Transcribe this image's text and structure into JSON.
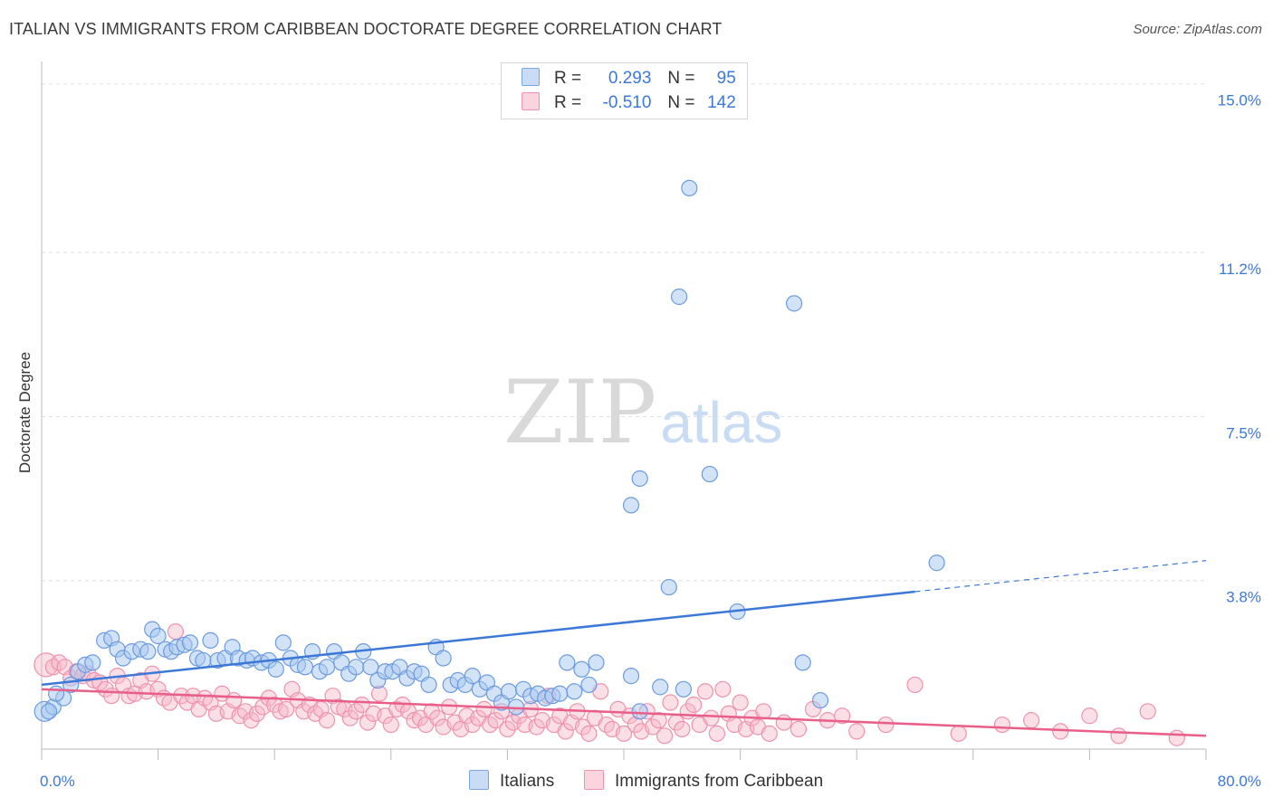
{
  "header": {
    "title": "ITALIAN VS IMMIGRANTS FROM CARIBBEAN DOCTORATE DEGREE CORRELATION CHART",
    "source": "Source: ZipAtlas.com"
  },
  "legend": {
    "r_label": "R =",
    "n_label": "N =",
    "rows": [
      {
        "r": "0.293",
        "n": "95",
        "color": "#a8c8f0"
      },
      {
        "r": "-0.510",
        "n": "142",
        "color": "#f7b7c8"
      }
    ]
  },
  "watermark": {
    "zip": "ZIP",
    "atlas": "atlas"
  },
  "colors": {
    "blue": "#3c78d8",
    "blue_fill": "#a8c8f0",
    "pink": "#e8608a",
    "pink_fill": "#f7b7c8",
    "grid": "#dddddd"
  },
  "chart_data": {
    "type": "scatter",
    "title": "ITALIAN VS IMMIGRANTS FROM CARIBBEAN DOCTORATE DEGREE CORRELATION CHART",
    "xlabel": "",
    "ylabel": "Doctorate Degree",
    "xlim": [
      0,
      80
    ],
    "ylim": [
      0,
      15.3
    ],
    "y_ticks": [
      3.8,
      7.5,
      11.2,
      15.0
    ],
    "y_tick_labels": [
      "3.8%",
      "7.5%",
      "11.2%",
      "15.0%"
    ],
    "x_tick_labels": [
      "0.0%",
      "80.0%"
    ],
    "grid": true,
    "legend_placement": "bottom",
    "series": [
      {
        "name": "Italians",
        "color": "#a8c8f0",
        "trend": {
          "x0": 0,
          "y0": 1.45,
          "x1": 60,
          "y1": 3.55,
          "dash_to_x": 80,
          "dash_to_y": 4.25
        },
        "points": [
          [
            0.2,
            0.85
          ],
          [
            0.8,
            0.95
          ],
          [
            1.5,
            1.15
          ],
          [
            2,
            1.45
          ],
          [
            2.5,
            1.75
          ],
          [
            3,
            1.9
          ],
          [
            3.5,
            1.95
          ],
          [
            4.3,
            2.45
          ],
          [
            4.8,
            2.5
          ],
          [
            5.2,
            2.25
          ],
          [
            5.6,
            2.05
          ],
          [
            6.2,
            2.2
          ],
          [
            6.8,
            2.25
          ],
          [
            7.3,
            2.2
          ],
          [
            7.6,
            2.7
          ],
          [
            8,
            2.55
          ],
          [
            8.5,
            2.25
          ],
          [
            8.9,
            2.2
          ],
          [
            9.3,
            2.3
          ],
          [
            9.8,
            2.35
          ],
          [
            10.2,
            2.4
          ],
          [
            10.7,
            2.05
          ],
          [
            11.1,
            2.0
          ],
          [
            11.6,
            2.45
          ],
          [
            12.1,
            2.0
          ],
          [
            12.6,
            2.05
          ],
          [
            13.1,
            2.3
          ],
          [
            13.5,
            2.05
          ],
          [
            14.1,
            2.0
          ],
          [
            14.5,
            2.05
          ],
          [
            15.1,
            1.95
          ],
          [
            15.6,
            2.0
          ],
          [
            16.1,
            1.8
          ],
          [
            16.6,
            2.4
          ],
          [
            17.1,
            2.05
          ],
          [
            17.6,
            1.9
          ],
          [
            18.1,
            1.85
          ],
          [
            18.6,
            2.2
          ],
          [
            19.1,
            1.75
          ],
          [
            19.6,
            1.85
          ],
          [
            20.1,
            2.2
          ],
          [
            20.6,
            1.95
          ],
          [
            21.1,
            1.7
          ],
          [
            21.6,
            1.85
          ],
          [
            22.1,
            2.2
          ],
          [
            22.6,
            1.85
          ],
          [
            23.1,
            1.55
          ],
          [
            23.6,
            1.75
          ],
          [
            24.1,
            1.75
          ],
          [
            24.6,
            1.85
          ],
          [
            25.1,
            1.6
          ],
          [
            25.6,
            1.75
          ],
          [
            26.1,
            1.7
          ],
          [
            26.6,
            1.45
          ],
          [
            27.1,
            2.3
          ],
          [
            27.6,
            2.05
          ],
          [
            28.1,
            1.45
          ],
          [
            28.6,
            1.55
          ],
          [
            29.1,
            1.45
          ],
          [
            29.6,
            1.65
          ],
          [
            30.1,
            1.35
          ],
          [
            30.6,
            1.5
          ],
          [
            31.1,
            1.25
          ],
          [
            31.6,
            1.05
          ],
          [
            32.1,
            1.3
          ],
          [
            32.6,
            0.95
          ],
          [
            33.1,
            1.35
          ],
          [
            33.6,
            1.2
          ],
          [
            34.1,
            1.25
          ],
          [
            34.6,
            1.15
          ],
          [
            35.1,
            1.2
          ],
          [
            35.6,
            1.25
          ],
          [
            36.1,
            1.95
          ],
          [
            36.6,
            1.3
          ],
          [
            37.1,
            1.8
          ],
          [
            37.6,
            1.45
          ],
          [
            38.1,
            1.95
          ],
          [
            40.5,
            1.65
          ],
          [
            41.1,
            0.85
          ],
          [
            42.5,
            1.4
          ],
          [
            44.1,
            1.35
          ],
          [
            41.1,
            6.1
          ],
          [
            40.5,
            5.5
          ],
          [
            43.1,
            3.65
          ],
          [
            43.8,
            10.2
          ],
          [
            44.5,
            12.65
          ],
          [
            45.9,
            6.2
          ],
          [
            47.8,
            3.1
          ],
          [
            51.7,
            10.05
          ],
          [
            52.3,
            1.95
          ],
          [
            53.5,
            1.1
          ],
          [
            61.5,
            4.2
          ],
          [
            0.5,
            0.85
          ],
          [
            1.0,
            1.25
          ]
        ]
      },
      {
        "name": "Immigrants from Caribbean",
        "color": "#f7b7c8",
        "trend": {
          "x0": 0,
          "y0": 1.35,
          "x1": 80,
          "y1": 0.3
        },
        "points": [
          [
            0.3,
            1.9
          ],
          [
            0.8,
            1.85
          ],
          [
            1.2,
            1.95
          ],
          [
            1.6,
            1.85
          ],
          [
            2,
            1.6
          ],
          [
            2.4,
            1.75
          ],
          [
            2.8,
            1.65
          ],
          [
            3.2,
            1.7
          ],
          [
            3.6,
            1.55
          ],
          [
            4,
            1.5
          ],
          [
            4.4,
            1.35
          ],
          [
            4.8,
            1.2
          ],
          [
            5.2,
            1.65
          ],
          [
            5.6,
            1.45
          ],
          [
            6,
            1.2
          ],
          [
            6.4,
            1.25
          ],
          [
            6.8,
            1.55
          ],
          [
            7.2,
            1.3
          ],
          [
            7.6,
            1.7
          ],
          [
            8,
            1.35
          ],
          [
            8.4,
            1.15
          ],
          [
            8.8,
            1.05
          ],
          [
            9.2,
            2.65
          ],
          [
            9.6,
            1.2
          ],
          [
            10,
            1.05
          ],
          [
            10.4,
            1.2
          ],
          [
            10.8,
            0.9
          ],
          [
            11.2,
            1.15
          ],
          [
            11.6,
            1.05
          ],
          [
            12,
            0.8
          ],
          [
            12.4,
            1.25
          ],
          [
            12.8,
            0.85
          ],
          [
            13.2,
            1.1
          ],
          [
            13.6,
            0.75
          ],
          [
            14,
            0.85
          ],
          [
            14.4,
            0.65
          ],
          [
            14.8,
            0.8
          ],
          [
            15.2,
            0.95
          ],
          [
            15.6,
            1.15
          ],
          [
            16,
            1.0
          ],
          [
            16.4,
            0.85
          ],
          [
            16.8,
            0.9
          ],
          [
            17.2,
            1.35
          ],
          [
            17.6,
            1.1
          ],
          [
            18,
            0.85
          ],
          [
            18.4,
            1.0
          ],
          [
            18.8,
            0.8
          ],
          [
            19.2,
            0.9
          ],
          [
            19.6,
            0.65
          ],
          [
            20,
            1.2
          ],
          [
            20.4,
            0.95
          ],
          [
            20.8,
            0.9
          ],
          [
            21.2,
            0.7
          ],
          [
            21.6,
            0.85
          ],
          [
            22,
            1.0
          ],
          [
            22.4,
            0.6
          ],
          [
            22.8,
            0.8
          ],
          [
            23.2,
            1.25
          ],
          [
            23.6,
            0.75
          ],
          [
            24,
            0.55
          ],
          [
            24.4,
            0.9
          ],
          [
            24.8,
            1.0
          ],
          [
            25.2,
            0.85
          ],
          [
            25.6,
            0.65
          ],
          [
            26,
            0.7
          ],
          [
            26.4,
            0.55
          ],
          [
            26.8,
            0.85
          ],
          [
            27.2,
            0.7
          ],
          [
            27.6,
            0.5
          ],
          [
            28,
            0.95
          ],
          [
            28.4,
            0.6
          ],
          [
            28.8,
            0.45
          ],
          [
            29.2,
            0.75
          ],
          [
            29.6,
            0.55
          ],
          [
            30,
            0.7
          ],
          [
            30.4,
            0.9
          ],
          [
            30.8,
            0.55
          ],
          [
            31.2,
            0.65
          ],
          [
            31.6,
            0.85
          ],
          [
            32,
            0.45
          ],
          [
            32.4,
            0.6
          ],
          [
            32.8,
            0.75
          ],
          [
            33.2,
            0.55
          ],
          [
            33.6,
            0.9
          ],
          [
            34,
            0.5
          ],
          [
            34.4,
            0.65
          ],
          [
            34.8,
            1.2
          ],
          [
            35.2,
            0.55
          ],
          [
            35.6,
            0.75
          ],
          [
            36,
            0.4
          ],
          [
            36.4,
            0.6
          ],
          [
            36.8,
            0.85
          ],
          [
            37.2,
            0.5
          ],
          [
            37.6,
            0.35
          ],
          [
            38,
            0.7
          ],
          [
            38.4,
            1.3
          ],
          [
            38.8,
            0.55
          ],
          [
            39.2,
            0.45
          ],
          [
            39.6,
            0.9
          ],
          [
            40,
            0.35
          ],
          [
            40.4,
            0.75
          ],
          [
            40.8,
            0.55
          ],
          [
            41.2,
            0.4
          ],
          [
            41.6,
            0.85
          ],
          [
            42,
            0.5
          ],
          [
            42.4,
            0.65
          ],
          [
            42.8,
            0.3
          ],
          [
            43.2,
            1.05
          ],
          [
            43.6,
            0.6
          ],
          [
            44,
            0.45
          ],
          [
            44.4,
            0.85
          ],
          [
            44.8,
            1.0
          ],
          [
            45.2,
            0.55
          ],
          [
            45.6,
            1.3
          ],
          [
            46,
            0.7
          ],
          [
            46.4,
            0.35
          ],
          [
            46.8,
            1.35
          ],
          [
            47.2,
            0.8
          ],
          [
            47.6,
            0.55
          ],
          [
            48,
            1.05
          ],
          [
            48.4,
            0.45
          ],
          [
            48.8,
            0.7
          ],
          [
            49.2,
            0.5
          ],
          [
            49.6,
            0.85
          ],
          [
            50,
            0.35
          ],
          [
            51,
            0.6
          ],
          [
            52,
            0.45
          ],
          [
            53,
            0.9
          ],
          [
            54,
            0.65
          ],
          [
            55,
            0.75
          ],
          [
            56,
            0.4
          ],
          [
            58,
            0.55
          ],
          [
            60,
            1.45
          ],
          [
            63,
            0.35
          ],
          [
            66,
            0.55
          ],
          [
            68,
            0.65
          ],
          [
            70,
            0.4
          ],
          [
            72,
            0.75
          ],
          [
            74,
            0.3
          ],
          [
            76,
            0.85
          ],
          [
            78,
            0.25
          ]
        ]
      }
    ]
  },
  "bottom_legend": [
    {
      "label": "Italians",
      "color": "#a8c8f0"
    },
    {
      "label": "Immigrants from Caribbean",
      "color": "#f7b7c8"
    }
  ]
}
